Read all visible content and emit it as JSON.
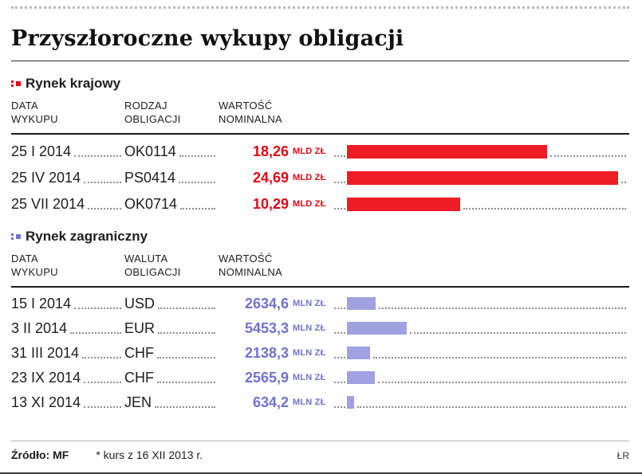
{
  "title": "Przyszłoroczne wykupy obligacji",
  "colors": {
    "domestic_bar": "#ee1c25",
    "domestic_text": "#e30613",
    "foreign_bar": "#9fa1e0",
    "foreign_text": "#7072cf"
  },
  "sections": [
    {
      "name": "Rynek krajowy",
      "columns": [
        {
          "l1": "DATA",
          "l2": "WYKUPU"
        },
        {
          "l1": "RODZAJ",
          "l2": "OBLIGACJI"
        },
        {
          "l1": "WARTOŚĆ",
          "l2": "NOMINALNA"
        }
      ],
      "rows": [
        {
          "date": "25 I 2014",
          "label": "OK0114",
          "value": "18,26",
          "unit": "MLD ZŁ",
          "value_mln": 18260
        },
        {
          "date": "25 IV 2014",
          "label": "PS0414",
          "value": "24,69",
          "unit": "MLD ZŁ",
          "value_mln": 24690
        },
        {
          "date": "25 VII 2014",
          "label": "OK0714",
          "value": "10,29",
          "unit": "MLD ZŁ",
          "value_mln": 10290
        }
      ]
    },
    {
      "name": "Rynek zagraniczny",
      "columns": [
        {
          "l1": "DATA",
          "l2": "WYKUPU"
        },
        {
          "l1": "WALUTA",
          "l2": "OBLIGACJI"
        },
        {
          "l1": "WARTOŚĆ",
          "l2": "NOMINALNA"
        }
      ],
      "rows": [
        {
          "date": "15 I 2014",
          "label": "USD",
          "value": "2634,6",
          "unit": "MLN ZŁ",
          "value_mln": 2634.6
        },
        {
          "date": "3 II 2014",
          "label": "EUR",
          "value": "5453,3",
          "unit": "MLN ZŁ",
          "value_mln": 5453.3
        },
        {
          "date": "31 III 2014",
          "label": "CHF",
          "value": "2138,3",
          "unit": "MLN ZŁ",
          "value_mln": 2138.3
        },
        {
          "date": "23 IX 2014",
          "label": "CHF",
          "value": "2565,9",
          "unit": "MLN ZŁ",
          "value_mln": 2565.9
        },
        {
          "date": "13 XI 2014",
          "label": "JEN",
          "value": "634,2",
          "unit": "MLN ZŁ",
          "value_mln": 634.2
        }
      ]
    }
  ],
  "footer": {
    "source": "Źródło: MF",
    "note": "* kurs z 16 XII 2013 r.",
    "credit": "ŁR"
  },
  "chart_data": [
    {
      "type": "bar",
      "title": "Rynek krajowy",
      "categories": [
        "25 I 2014 OK0114",
        "25 IV 2014 PS0414",
        "25 VII 2014 OK0714"
      ],
      "values": [
        18.26,
        24.69,
        10.29
      ],
      "xlabel": "",
      "ylabel": "WARTOŚĆ NOMINALNA (MLD ZŁ)",
      "bar_color": "#ee1c25",
      "orientation": "horizontal",
      "xlim": [
        0,
        24.69
      ]
    },
    {
      "type": "bar",
      "title": "Rynek zagraniczny",
      "categories": [
        "15 I 2014 USD",
        "3 II 2014 EUR",
        "31 III 2014 CHF",
        "23 IX 2014 CHF",
        "13 XI 2014 JEN"
      ],
      "values": [
        2634.6,
        5453.3,
        2138.3,
        2565.9,
        634.2
      ],
      "xlabel": "",
      "ylabel": "WARTOŚĆ NOMINALNA (MLN ZŁ)",
      "bar_color": "#9fa1e0",
      "orientation": "horizontal",
      "xlim": [
        0,
        24690
      ],
      "note": "bars share scale with Rynek krajowy (MLD converted to MLN)"
    }
  ]
}
